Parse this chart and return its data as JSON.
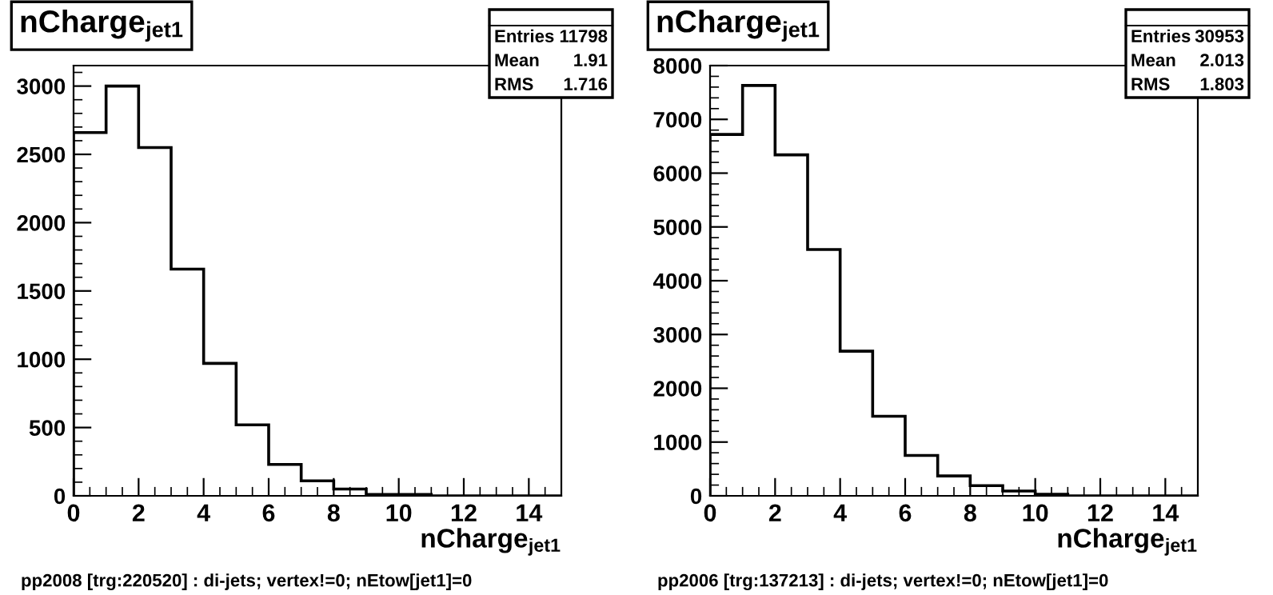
{
  "chart_data": [
    {
      "type": "histogram",
      "title": "nCharge$_{jet1}$",
      "xlabel": "nCharge$_{jet1}$",
      "bins": [
        0,
        1,
        2,
        3,
        4,
        5,
        6,
        7,
        8,
        9,
        10,
        11,
        12,
        13,
        14,
        15
      ],
      "values": [
        2660,
        3000,
        2550,
        1660,
        970,
        520,
        230,
        110,
        50,
        10,
        10,
        0,
        0,
        0,
        0
      ],
      "color": "#000000",
      "xlim": [
        0,
        15
      ],
      "ylim": [
        0,
        3150
      ],
      "xticks": [
        0,
        2,
        4,
        6,
        8,
        10,
        12,
        14
      ],
      "yticks": [
        0,
        500,
        1000,
        1500,
        2000,
        2500,
        3000
      ],
      "grid": false,
      "legend": false,
      "annotations": [
        "pp2008 [trg:220520] : di-jets; vertex!=0; nEtow[jet1]=0",
        "Entries 11798",
        "Mean 1.91",
        "RMS 1.716"
      ]
    },
    {
      "type": "histogram",
      "title": "nCharge$_{jet1}$",
      "xlabel": "nCharge$_{jet1}$",
      "bins": [
        0,
        1,
        2,
        3,
        4,
        5,
        6,
        7,
        8,
        9,
        10,
        11,
        12,
        13,
        14,
        15
      ],
      "values": [
        6720,
        7630,
        6340,
        4580,
        2690,
        1480,
        750,
        370,
        190,
        90,
        30,
        0,
        0,
        0,
        0
      ],
      "color": "#000000",
      "xlim": [
        0,
        15
      ],
      "ylim": [
        0,
        8000
      ],
      "xticks": [
        0,
        2,
        4,
        6,
        8,
        10,
        12,
        14
      ],
      "yticks": [
        0,
        1000,
        2000,
        3000,
        4000,
        5000,
        6000,
        7000,
        8000
      ],
      "grid": false,
      "legend": false,
      "annotations": [
        "pp2006 [trg:137213] : di-jets; vertex!=0; nEtow[jet1]=0",
        "Entries 30953",
        "Mean 2.013",
        "RMS 1.803"
      ]
    }
  ]
}
